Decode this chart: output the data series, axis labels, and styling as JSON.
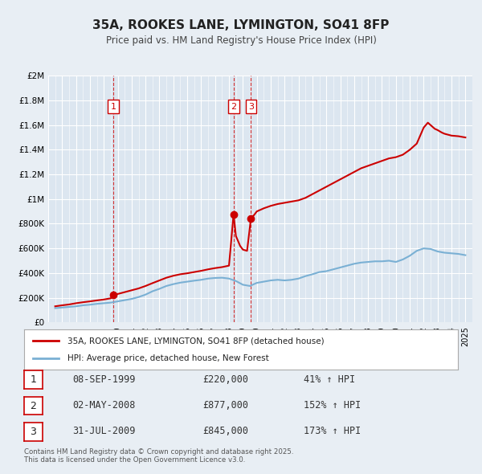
{
  "title": "35A, ROOKES LANE, LYMINGTON, SO41 8FP",
  "subtitle": "Price paid vs. HM Land Registry's House Price Index (HPI)",
  "background_color": "#e8eef4",
  "plot_background": "#dce6f0",
  "grid_color": "#ffffff",
  "red_line_color": "#cc0000",
  "blue_line_color": "#7ab0d4",
  "xlim": [
    1995.0,
    2025.5
  ],
  "ylim": [
    0,
    2000000
  ],
  "yticks": [
    0,
    200000,
    400000,
    600000,
    800000,
    1000000,
    1200000,
    1400000,
    1600000,
    1800000,
    2000000
  ],
  "ytick_labels": [
    "£0",
    "£200K",
    "£400K",
    "£600K",
    "£800K",
    "£1M",
    "£1.2M",
    "£1.4M",
    "£1.6M",
    "£1.8M",
    "£2M"
  ],
  "transactions": [
    {
      "num": 1,
      "date": "08-SEP-1999",
      "year": 1999.69,
      "price": 220000,
      "pct": "41%",
      "vline_x": 1999.69
    },
    {
      "num": 2,
      "date": "02-MAY-2008",
      "year": 2008.33,
      "price": 877000,
      "pct": "152%",
      "vline_x": 2008.33
    },
    {
      "num": 3,
      "date": "31-JUL-2009",
      "year": 2009.58,
      "price": 845000,
      "pct": "173%",
      "vline_x": 2009.58
    }
  ],
  "legend_entry1": "35A, ROOKES LANE, LYMINGTON, SO41 8FP (detached house)",
  "legend_entry2": "HPI: Average price, detached house, New Forest",
  "footer": "Contains HM Land Registry data © Crown copyright and database right 2025.\nThis data is licensed under the Open Government Licence v3.0.",
  "hpi_data": {
    "years": [
      1995.5,
      1996.0,
      1996.5,
      1997.0,
      1997.5,
      1998.0,
      1998.5,
      1999.0,
      1999.5,
      2000.0,
      2000.5,
      2001.0,
      2001.5,
      2002.0,
      2002.5,
      2003.0,
      2003.5,
      2004.0,
      2004.5,
      2005.0,
      2005.5,
      2006.0,
      2006.5,
      2007.0,
      2007.5,
      2008.0,
      2008.5,
      2009.0,
      2009.5,
      2010.0,
      2010.5,
      2011.0,
      2011.5,
      2012.0,
      2012.5,
      2013.0,
      2013.5,
      2014.0,
      2014.5,
      2015.0,
      2015.5,
      2016.0,
      2016.5,
      2017.0,
      2017.5,
      2018.0,
      2018.5,
      2019.0,
      2019.5,
      2020.0,
      2020.5,
      2021.0,
      2021.5,
      2022.0,
      2022.5,
      2023.0,
      2023.5,
      2024.0,
      2024.5,
      2025.0
    ],
    "values": [
      115000,
      120000,
      125000,
      130000,
      138000,
      143000,
      150000,
      155000,
      160000,
      170000,
      180000,
      190000,
      205000,
      225000,
      252000,
      272000,
      295000,
      310000,
      322000,
      330000,
      338000,
      345000,
      355000,
      360000,
      362000,
      355000,
      335000,
      305000,
      295000,
      320000,
      330000,
      340000,
      345000,
      340000,
      345000,
      355000,
      375000,
      390000,
      408000,
      415000,
      430000,
      445000,
      460000,
      475000,
      485000,
      490000,
      495000,
      495000,
      500000,
      490000,
      510000,
      540000,
      580000,
      600000,
      595000,
      575000,
      565000,
      560000,
      555000,
      545000
    ]
  },
  "price_data": {
    "years": [
      1995.5,
      1996.0,
      1996.5,
      1997.0,
      1997.5,
      1998.0,
      1998.5,
      1999.0,
      1999.5,
      1999.69,
      2000.0,
      2000.5,
      2001.0,
      2001.5,
      2002.0,
      2002.5,
      2003.0,
      2003.5,
      2004.0,
      2004.5,
      2005.0,
      2005.5,
      2006.0,
      2006.5,
      2007.0,
      2007.5,
      2008.0,
      2008.33,
      2008.5,
      2008.8,
      2009.0,
      2009.3,
      2009.58,
      2009.8,
      2010.0,
      2010.5,
      2011.0,
      2011.5,
      2012.0,
      2012.5,
      2013.0,
      2013.5,
      2014.0,
      2014.5,
      2015.0,
      2015.5,
      2016.0,
      2016.5,
      2017.0,
      2017.5,
      2018.0,
      2018.5,
      2019.0,
      2019.5,
      2020.0,
      2020.5,
      2021.0,
      2021.5,
      2022.0,
      2022.3,
      2022.5,
      2022.8,
      2023.0,
      2023.3,
      2023.5,
      2024.0,
      2024.5,
      2025.0
    ],
    "values": [
      130000,
      138000,
      145000,
      155000,
      163000,
      170000,
      178000,
      185000,
      195000,
      220000,
      230000,
      245000,
      260000,
      275000,
      295000,
      318000,
      340000,
      362000,
      378000,
      390000,
      398000,
      408000,
      418000,
      430000,
      440000,
      448000,
      460000,
      877000,
      700000,
      620000,
      590000,
      580000,
      845000,
      870000,
      900000,
      925000,
      945000,
      960000,
      970000,
      980000,
      990000,
      1010000,
      1040000,
      1070000,
      1100000,
      1130000,
      1160000,
      1190000,
      1220000,
      1250000,
      1270000,
      1290000,
      1310000,
      1330000,
      1340000,
      1360000,
      1400000,
      1450000,
      1580000,
      1620000,
      1600000,
      1570000,
      1560000,
      1540000,
      1530000,
      1515000,
      1510000,
      1500000
    ]
  }
}
